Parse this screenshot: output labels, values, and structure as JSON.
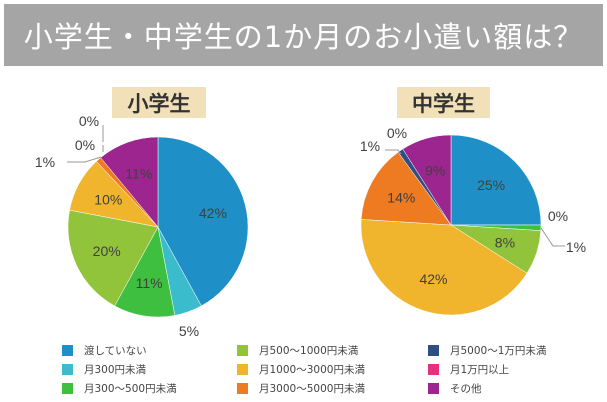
{
  "title": "小学生・中学生の1か月のお小遣い額は？",
  "chart_data": [
    {
      "type": "pie",
      "title": "小学生",
      "categories": [
        "渡していない",
        "月300円未満",
        "月300〜500円未満",
        "月500〜1000円未満",
        "月1000〜3000円未満",
        "月3000〜5000円未満",
        "月5000〜1万円未満",
        "月1万円以上",
        "その他"
      ],
      "values": [
        42,
        5,
        11,
        20,
        10,
        1,
        0,
        0,
        11
      ],
      "labels": [
        "42%",
        "5%",
        "11%",
        "20%",
        "10%",
        "1%",
        "0%",
        "0%",
        "11%"
      ],
      "unit": "%"
    },
    {
      "type": "pie",
      "title": "中学生",
      "categories": [
        "渡していない",
        "月300円未満",
        "月300〜500円未満",
        "月500〜1000円未満",
        "月1000〜3000円未満",
        "月3000〜5000円未満",
        "月5000〜1万円未満",
        "月1万円以上",
        "その他"
      ],
      "values": [
        25,
        0,
        1,
        8,
        42,
        14,
        1,
        0,
        9
      ],
      "labels": [
        "25%",
        "0%",
        "1%",
        "8%",
        "42%",
        "14%",
        "1%",
        "0%",
        "9%"
      ],
      "unit": "%"
    }
  ],
  "colors": [
    "#1f8fc7",
    "#3bbccc",
    "#3fbf3f",
    "#92c43b",
    "#f0b52c",
    "#ee7a22",
    "#2f4f82",
    "#e8317d",
    "#9c2590"
  ],
  "legend": [
    {
      "label": "渡していない"
    },
    {
      "label": "月300円未満"
    },
    {
      "label": "月300〜500円未満"
    },
    {
      "label": "月500〜1000円未満"
    },
    {
      "label": "月1000〜3000円未満"
    },
    {
      "label": "月3000〜5000円未満"
    },
    {
      "label": "月5000〜1万円未満"
    },
    {
      "label": "月1万円以上"
    },
    {
      "label": "その他"
    }
  ]
}
